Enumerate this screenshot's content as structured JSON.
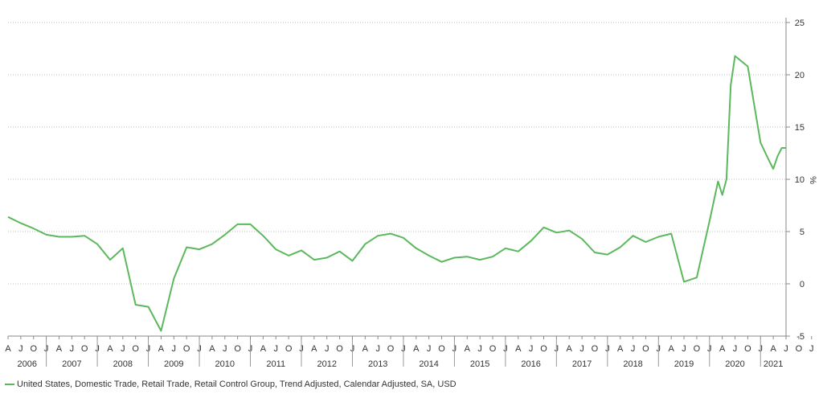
{
  "chart_data": {
    "type": "line",
    "ylabel": "%",
    "ylim": [
      -5,
      25
    ],
    "yticks": [
      -5,
      0,
      5,
      10,
      15,
      20,
      25
    ],
    "y_axis_position": "right",
    "grid": "horizontal dotted",
    "line_color": "#5cb85c",
    "x_start": "2006-04",
    "x_end": "2021-07",
    "month_tick_labels": [
      "A",
      "J",
      "O",
      "J",
      "A",
      "J",
      "O",
      "J",
      "A",
      "J",
      "O",
      "J",
      "A",
      "J",
      "O",
      "J",
      "A",
      "J",
      "O",
      "J",
      "A",
      "J",
      "O",
      "J",
      "A",
      "J",
      "O",
      "J",
      "A",
      "J",
      "O",
      "J",
      "A",
      "J",
      "O",
      "J",
      "A",
      "J",
      "O",
      "J",
      "A",
      "J",
      "O",
      "J",
      "A",
      "J",
      "O",
      "J",
      "A",
      "J",
      "O",
      "J",
      "A",
      "J",
      "O",
      "J",
      "A",
      "J",
      "O",
      "J",
      "A",
      "J",
      "O",
      "J"
    ],
    "year_labels": [
      "2006",
      "2007",
      "2008",
      "2009",
      "2010",
      "2011",
      "2012",
      "2013",
      "2014",
      "2015",
      "2016",
      "2017",
      "2018",
      "2019",
      "2020",
      "2021"
    ],
    "series": [
      {
        "name": "United States, Domestic Trade, Retail Trade, Retail Control Group, Trend Adjusted, Calendar Adjusted, SA, USD",
        "x": [
          "2006-04",
          "2006-07",
          "2006-10",
          "2007-01",
          "2007-04",
          "2007-07",
          "2007-10",
          "2008-01",
          "2008-04",
          "2008-07",
          "2008-10",
          "2009-01",
          "2009-04",
          "2009-07",
          "2009-10",
          "2010-01",
          "2010-04",
          "2010-07",
          "2010-10",
          "2011-01",
          "2011-04",
          "2011-07",
          "2011-10",
          "2012-01",
          "2012-04",
          "2012-07",
          "2012-10",
          "2013-01",
          "2013-04",
          "2013-07",
          "2013-10",
          "2014-01",
          "2014-04",
          "2014-07",
          "2014-10",
          "2015-01",
          "2015-04",
          "2015-07",
          "2015-10",
          "2016-01",
          "2016-04",
          "2016-07",
          "2016-10",
          "2017-01",
          "2017-04",
          "2017-07",
          "2017-10",
          "2018-01",
          "2018-04",
          "2018-07",
          "2018-10",
          "2019-01",
          "2019-04",
          "2019-07",
          "2019-10",
          "2020-01",
          "2020-03",
          "2020-04",
          "2020-05",
          "2020-06",
          "2020-07",
          "2020-10",
          "2021-01",
          "2021-03",
          "2021-04",
          "2021-05",
          "2021-06",
          "2021-07"
        ],
        "values": [
          6.4,
          5.8,
          5.3,
          4.7,
          4.5,
          4.5,
          4.6,
          3.8,
          2.3,
          3.4,
          -2.0,
          -2.2,
          -4.5,
          0.5,
          3.5,
          3.3,
          3.8,
          4.7,
          5.7,
          5.7,
          4.6,
          3.3,
          2.7,
          3.2,
          2.3,
          2.5,
          3.1,
          2.2,
          3.8,
          4.6,
          4.8,
          4.4,
          3.4,
          2.7,
          2.1,
          2.5,
          2.6,
          2.3,
          2.6,
          3.4,
          3.1,
          4.1,
          5.4,
          4.9,
          5.1,
          4.3,
          3.0,
          2.8,
          3.5,
          4.6,
          4.0,
          4.5,
          4.8,
          0.2,
          0.6,
          6.0,
          9.8,
          8.5,
          10.0,
          19.0,
          21.8,
          20.8,
          13.5,
          11.8,
          11.0,
          12.2,
          13.0,
          13.0
        ]
      }
    ]
  }
}
